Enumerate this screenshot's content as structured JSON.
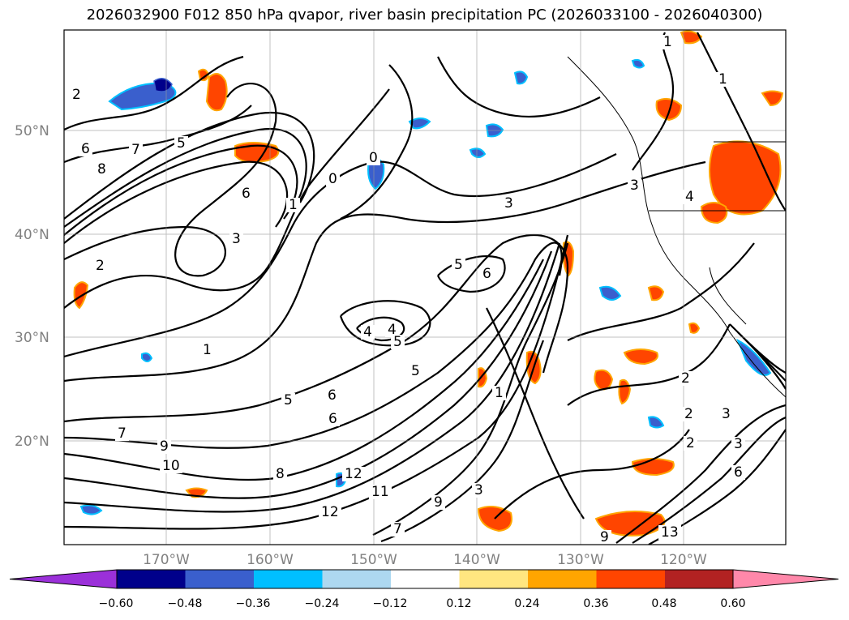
{
  "title": "2026032900 F012 850 hPa qvapor, river basin precipitation PC (2026033100 - 2026040300)",
  "lat_labels": [
    "50°N",
    "40°N",
    "30°N",
    "20°N"
  ],
  "lon_labels": [
    "170°W",
    "160°W",
    "150°W",
    "140°W",
    "130°W",
    "120°W"
  ],
  "colorbar": {
    "ticks": [
      "−0.60",
      "−0.48",
      "−0.36",
      "−0.24",
      "−0.12",
      "0.12",
      "0.24",
      "0.36",
      "0.48",
      "0.60"
    ],
    "colors": [
      "#9b30d9",
      "#00008b",
      "#3a5fcd",
      "#00bfff",
      "#add8f0",
      "#ffffff",
      "#ffe680",
      "#ffa500",
      "#ff4500",
      "#b22222",
      "#ff88aa"
    ]
  },
  "contour_labels": [
    "1",
    "1",
    "2",
    "2",
    "5",
    "6",
    "7",
    "8",
    "0",
    "6",
    "1",
    "3",
    "1",
    "0",
    "3",
    "3",
    "4",
    "4",
    "2",
    "6",
    "5",
    "4",
    "5",
    "5",
    "6",
    "1",
    "2",
    "7",
    "5",
    "6",
    "9",
    "10",
    "8",
    "12",
    "12",
    "11",
    "9",
    "7",
    "3",
    "2",
    "3",
    "3",
    "6",
    "13",
    "9"
  ]
}
